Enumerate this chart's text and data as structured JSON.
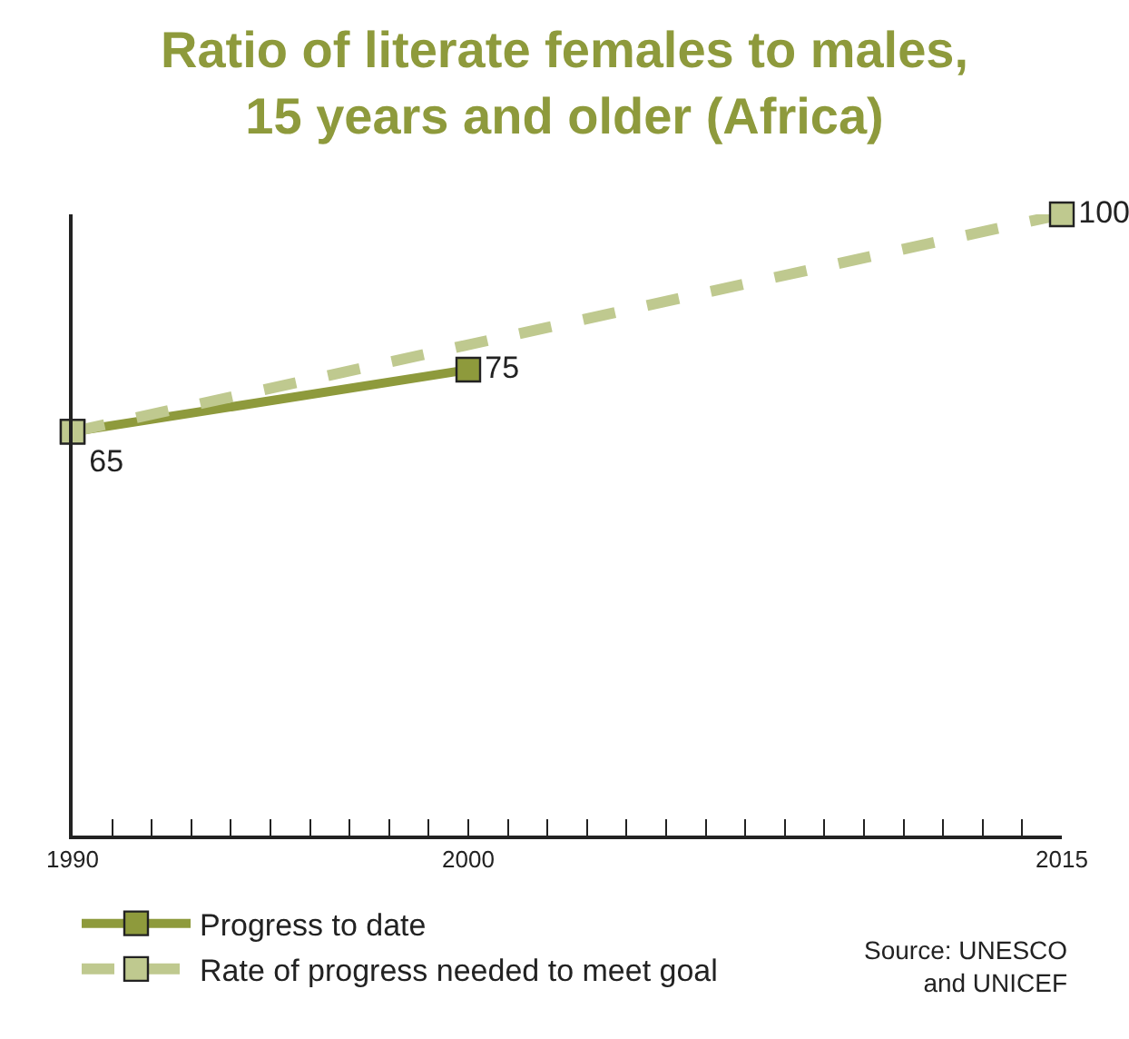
{
  "chart_data": {
    "type": "line",
    "title": "Ratio of literate females to males,\n15 years and older (Africa)",
    "series": [
      {
        "name": "Progress to date",
        "color": "#8e9a3c",
        "x": [
          1990,
          2000
        ],
        "values": [
          65,
          75
        ],
        "value_labels": [
          "65",
          "75"
        ],
        "line_style": "solid"
      },
      {
        "name": "Rate of progress needed to meet goal",
        "color": "#bfc98f",
        "x": [
          1990,
          2015
        ],
        "values": [
          65,
          100
        ],
        "value_labels": [
          null,
          "100"
        ],
        "line_style": "dashed"
      }
    ],
    "xlim": [
      1990,
      2015
    ],
    "xticks": [
      1990,
      {
        "value": 1991,
        "label": null
      },
      {
        "value": 1992,
        "label": null
      },
      {
        "value": 1993,
        "label": null
      },
      {
        "value": 1994,
        "label": null
      },
      {
        "value": 1995,
        "label": null
      },
      {
        "value": 1996,
        "label": null
      },
      {
        "value": 1997,
        "label": null
      },
      {
        "value": 1998,
        "label": null
      },
      {
        "value": 1999,
        "label": null
      },
      2000,
      {
        "value": 2001,
        "label": null
      },
      {
        "value": 2002,
        "label": null
      },
      {
        "value": 2003,
        "label": null
      },
      {
        "value": 2004,
        "label": null
      },
      {
        "value": 2005,
        "label": null
      },
      {
        "value": 2006,
        "label": null
      },
      {
        "value": 2007,
        "label": null
      },
      {
        "value": 2008,
        "label": null
      },
      {
        "value": 2009,
        "label": null
      },
      {
        "value": 2010,
        "label": null
      },
      {
        "value": 2011,
        "label": null
      },
      {
        "value": 2012,
        "label": null
      },
      {
        "value": 2013,
        "label": null
      },
      {
        "value": 2014,
        "label": null
      },
      2015
    ],
    "ylim": [
      0,
      100
    ],
    "tick_labels": "x",
    "grid": false,
    "legend": "bottom left",
    "marker": "square",
    "annotations": [
      "Source: UNESCO\nand UNICEF"
    ]
  }
}
